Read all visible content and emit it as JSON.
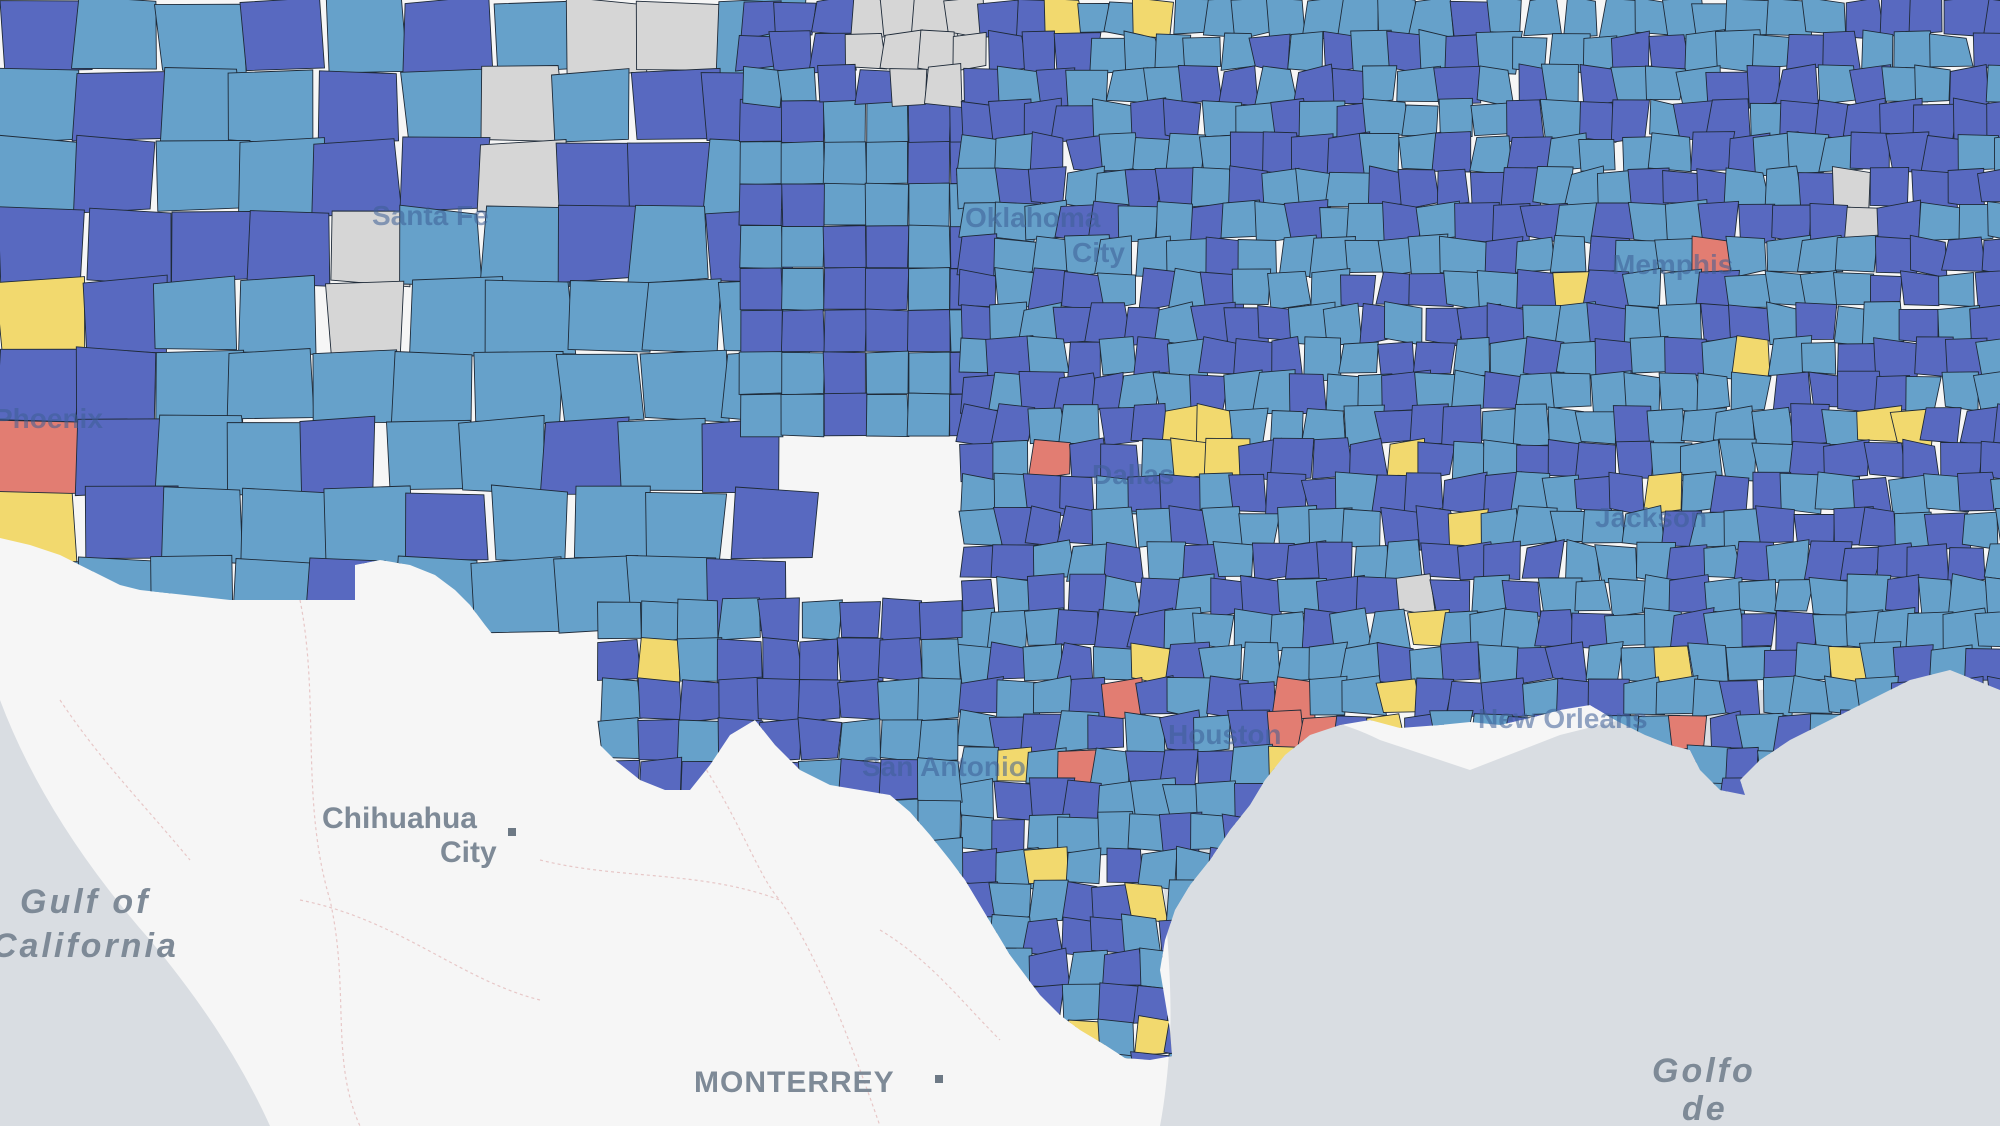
{
  "map": {
    "colors": {
      "land": "#f6f6f6",
      "water": "#d9dde2",
      "dark_blue": "#5869c0",
      "light_blue": "#66a1ca",
      "yellow": "#f2d96e",
      "red": "#e27d72",
      "gray": "#d6d6d6",
      "border": "#1e2a38",
      "label": "#7e8a97"
    },
    "labels": {
      "chihuahua_1": "Chihuahua",
      "chihuahua_2": "City",
      "gulf_of": "Gulf of",
      "california": "California",
      "monterrey": "MONTERREY",
      "golfo": "Golfo",
      "de": "de",
      "santa_fe": "Santa Fe",
      "oklahoma_1": "Oklahoma",
      "oklahoma_2": "City",
      "phoenix": "Phoenix",
      "dallas": "Dallas",
      "san_antonio": "San Antonio",
      "houston": "Houston",
      "new_orleans": "New Orleans",
      "memphis": "Memphis",
      "jackson": "Jackson"
    }
  }
}
